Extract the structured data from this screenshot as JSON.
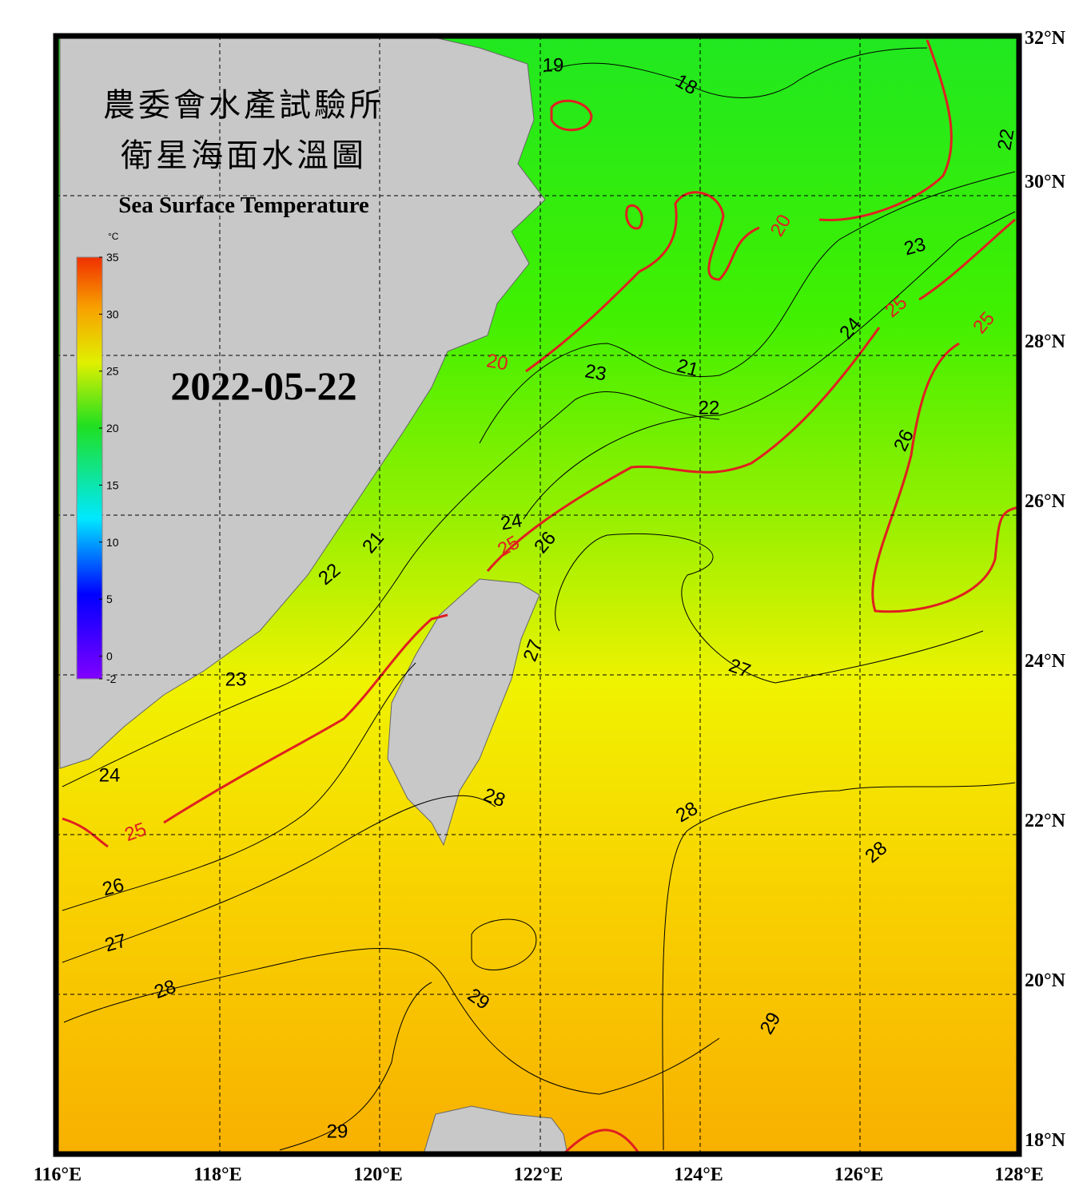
{
  "header": {
    "title_zh_1": "農委會水產試驗所",
    "title_zh_2": "衛星海面水溫圖",
    "title_en": "Sea Surface Temperature",
    "date": "2022-05-22"
  },
  "colorbar": {
    "unit": "°C",
    "ticks": [
      35,
      30,
      25,
      20,
      15,
      10,
      5,
      0,
      -2
    ]
  },
  "axes": {
    "lon_labels": [
      "116°E",
      "118°E",
      "120°E",
      "122°E",
      "124°E",
      "126°E",
      "128°E"
    ],
    "lat_labels": [
      "18°N",
      "20°N",
      "22°N",
      "24°N",
      "26°N",
      "28°N",
      "30°N",
      "32°N"
    ]
  },
  "contour_labels": [
    19,
    18,
    22,
    20,
    23,
    25,
    25,
    24,
    20,
    21,
    23,
    22,
    26,
    24,
    26,
    25,
    21,
    22,
    27,
    27,
    23,
    24,
    28,
    28,
    25,
    28,
    26,
    27,
    28,
    29,
    29,
    29
  ]
}
